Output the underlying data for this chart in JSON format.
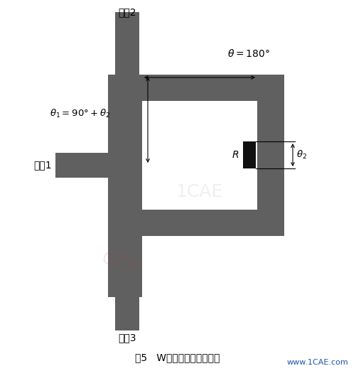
{
  "bg_color": "#ffffff",
  "dark_gray": "#606060",
  "black": "#111111",
  "fig_width": 5.01,
  "fig_height": 5.22,
  "dpi": 100,
  "port2_label": "端口2",
  "port1_label": "端口1",
  "port3_label": "端口3",
  "caption": "图5   W波段功分器设计模型",
  "website": "www.1CAE.com"
}
